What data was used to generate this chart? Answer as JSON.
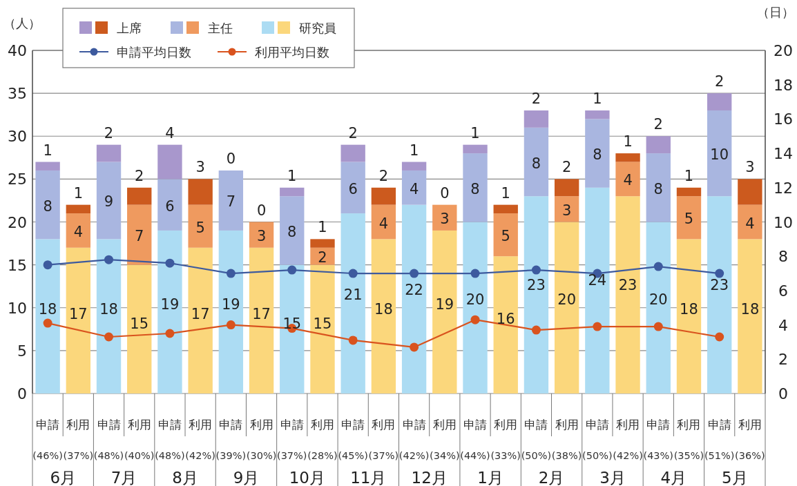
{
  "chart_data": {
    "type": "bar",
    "stacked": true,
    "ylabel": "（人）",
    "y2label": "（日）",
    "categories": [
      "申請\n(46%)",
      "利用\n(37%)",
      "申請\n(48%)",
      "利用\n(40%)",
      "申請\n(48%)",
      "利用\n(42%)",
      "申請\n(39%)",
      "利用\n(30%)",
      "申請\n(37%)",
      "利用\n(28%)",
      "申請\n(45%)",
      "利用\n(37%)",
      "申請\n(42%)",
      "利用\n(34%)",
      "申請\n(44%)",
      "利用\n(33%)",
      "申請\n(50%)",
      "利用\n(38%)",
      "申請\n(50%)",
      "利用\n(42%)",
      "申請\n(43%)",
      "利用\n(35%)",
      "申請\n(51%)",
      "利用\n(36%)"
    ],
    "annotations": [
      "6月",
      "7月",
      "8月",
      "9月",
      "10月",
      "11月",
      "12月",
      "1月",
      "2月",
      "3月",
      "4月",
      "5月"
    ],
    "series": [
      {
        "name": "研究員",
        "data_labels": true,
        "colors": [
          "#acdcf3",
          "#fbd77c",
          "#acdcf3",
          "#fbd77c",
          "#acdcf3",
          "#fbd77c",
          "#acdcf3",
          "#fbd77c",
          "#acdcf3",
          "#fbd77c",
          "#acdcf3",
          "#fbd77c",
          "#acdcf3",
          "#fbd77c",
          "#acdcf3",
          "#fbd77c",
          "#acdcf3",
          "#fbd77c",
          "#acdcf3",
          "#fbd77c",
          "#acdcf3",
          "#fbd77c",
          "#acdcf3",
          "#fbd77c"
        ],
        "values": [
          18,
          17,
          18,
          15,
          19,
          17,
          19,
          17,
          15,
          15,
          21,
          18,
          22,
          19,
          20,
          16,
          23,
          20,
          24,
          23,
          20,
          18,
          23,
          18
        ]
      },
      {
        "name": "主任",
        "data_labels": true,
        "colors": [
          "#a9b6e0",
          "#ef9a5f",
          "#a9b6e0",
          "#ef9a5f",
          "#a9b6e0",
          "#ef9a5f",
          "#a9b6e0",
          "#ef9a5f",
          "#a9b6e0",
          "#ef9a5f",
          "#a9b6e0",
          "#ef9a5f",
          "#a9b6e0",
          "#ef9a5f",
          "#a9b6e0",
          "#ef9a5f",
          "#a9b6e0",
          "#ef9a5f",
          "#a9b6e0",
          "#ef9a5f",
          "#a9b6e0",
          "#ef9a5f",
          "#a9b6e0",
          "#ef9a5f"
        ],
        "values": [
          8,
          4,
          9,
          7,
          6,
          5,
          7,
          3,
          8,
          2,
          6,
          4,
          4,
          3,
          8,
          5,
          8,
          3,
          8,
          4,
          8,
          5,
          10,
          4
        ]
      },
      {
        "name": "上席",
        "data_labels": true,
        "colors": [
          "#a897cc",
          "#cc5a1e",
          "#a897cc",
          "#cc5a1e",
          "#a897cc",
          "#cc5a1e",
          "#a897cc",
          "#cc5a1e",
          "#a897cc",
          "#cc5a1e",
          "#a897cc",
          "#cc5a1e",
          "#a897cc",
          "#cc5a1e",
          "#a897cc",
          "#cc5a1e",
          "#a897cc",
          "#cc5a1e",
          "#a897cc",
          "#cc5a1e",
          "#a897cc",
          "#cc5a1e",
          "#a897cc",
          "#cc5a1e"
        ],
        "values": [
          1,
          1,
          2,
          2,
          4,
          3,
          0,
          0,
          1,
          1,
          2,
          2,
          1,
          0,
          1,
          1,
          2,
          2,
          1,
          1,
          2,
          1,
          2,
          3
        ]
      },
      {
        "name": "申請平均日数",
        "type": "line",
        "axis": "y2",
        "color": "#3d5a9e",
        "values": [
          7.5,
          null,
          7.8,
          null,
          7.6,
          null,
          7.0,
          null,
          7.2,
          null,
          7.0,
          null,
          7.0,
          null,
          7.0,
          null,
          7.2,
          null,
          7.0,
          null,
          7.4,
          null,
          7.0,
          null
        ]
      },
      {
        "name": "利用平均日数",
        "type": "line",
        "axis": "y2",
        "color": "#d9531e",
        "values": [
          4.1,
          null,
          3.3,
          null,
          3.5,
          null,
          4.0,
          null,
          3.8,
          null,
          3.1,
          null,
          2.7,
          null,
          4.3,
          null,
          3.7,
          null,
          3.9,
          null,
          3.9,
          null,
          3.3,
          null
        ]
      }
    ],
    "ylim": [
      0,
      40
    ],
    "yticks": [
      0,
      5,
      10,
      15,
      20,
      25,
      30,
      35,
      40
    ],
    "y2lim": [
      0,
      20
    ],
    "y2ticks": [
      0,
      2,
      4,
      6,
      8,
      10,
      12,
      14,
      16,
      18,
      20
    ],
    "grid": "y",
    "legend": "top",
    "marker": "circle"
  }
}
